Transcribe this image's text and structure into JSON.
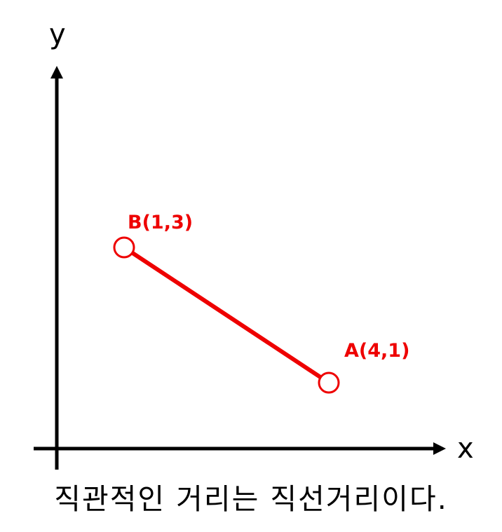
{
  "axes": {
    "x_label": "x",
    "y_label": "y"
  },
  "points": [
    {
      "name": "A",
      "label": "A(4,1)",
      "x": 4,
      "y": 1
    },
    {
      "name": "B",
      "label": "B(1,3)",
      "x": 1,
      "y": 3
    }
  ],
  "segment": {
    "from": "B",
    "to": "A"
  },
  "caption": "직관적인 거리는 직선거리이다.",
  "colors": {
    "axis": "#000000",
    "highlight": "#ee0000",
    "point_fill": "#ffffff"
  }
}
